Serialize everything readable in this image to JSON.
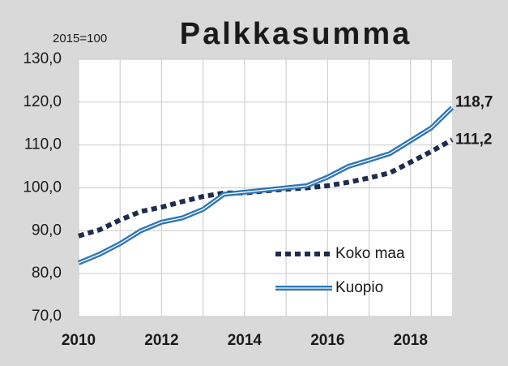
{
  "chart_data": {
    "type": "line",
    "title": "Palkkasumma",
    "ylabel": "2015=100",
    "x": [
      2010,
      2010.5,
      2011,
      2011.5,
      2012,
      2012.5,
      2013,
      2013.5,
      2014,
      2014.5,
      2015,
      2015.5,
      2016,
      2016.5,
      2017,
      2017.5,
      2018,
      2018.5,
      2019
    ],
    "series": [
      {
        "name": "Koko maa",
        "color": "#1f2d4d",
        "style": "dotted",
        "values": [
          88.8,
          90.2,
          92.5,
          94.5,
          95.5,
          96.8,
          98.0,
          98.8,
          98.8,
          99.3,
          99.7,
          100.0,
          100.5,
          101.3,
          102.3,
          103.5,
          106.0,
          108.5,
          111.2
        ],
        "value_labels": [
          null,
          null,
          null,
          null,
          null,
          null,
          null,
          null,
          null,
          null,
          null,
          null,
          null,
          null,
          null,
          null,
          null,
          null,
          "111,2"
        ]
      },
      {
        "name": "Kuopio",
        "color": "#2e75b6",
        "style": "double",
        "values": [
          82.5,
          84.5,
          87.0,
          90.0,
          92.0,
          93.0,
          95.0,
          98.5,
          99.0,
          99.5,
          100.0,
          100.5,
          102.5,
          105.0,
          106.5,
          108.0,
          111.0,
          114.0,
          118.7
        ],
        "value_labels": [
          null,
          null,
          null,
          null,
          null,
          null,
          null,
          null,
          null,
          null,
          null,
          null,
          null,
          null,
          null,
          null,
          null,
          null,
          "118,7"
        ]
      }
    ],
    "xlim": [
      2010,
      2019
    ],
    "xticks": [
      2010,
      2012,
      2014,
      2016,
      2018
    ],
    "ylim": [
      70,
      130
    ],
    "yticks": [
      {
        "value": 70,
        "label": "70,0"
      },
      {
        "value": 80,
        "label": "80,0"
      },
      {
        "value": 90,
        "label": "90,0"
      },
      {
        "value": 100,
        "label": "100,0"
      },
      {
        "value": 110,
        "label": "110,0"
      },
      {
        "value": 120,
        "label": "120,0"
      },
      {
        "value": 130,
        "label": "130,0"
      }
    ],
    "grid": true,
    "legend": "lower right"
  }
}
